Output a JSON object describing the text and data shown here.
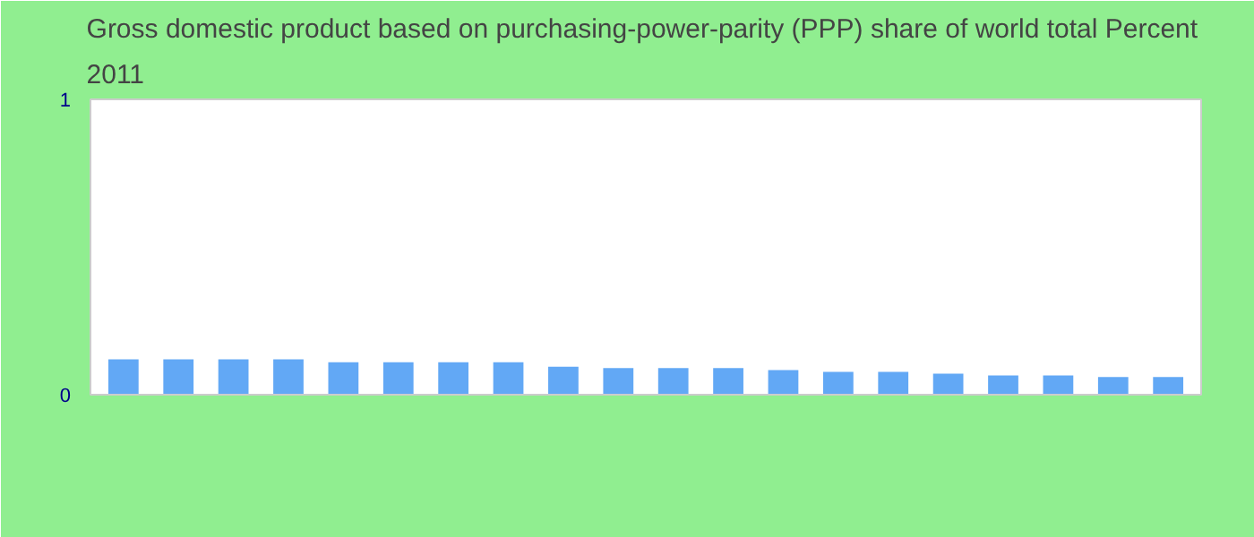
{
  "chart_data": {
    "type": "bar",
    "title": "Gross domestic product based on purchasing-power-parity (PPP) share of world total  Percent 2011",
    "categories": [
      null,
      null,
      null,
      null,
      null,
      null,
      null,
      null,
      null,
      null,
      null,
      null,
      null,
      null,
      null,
      null,
      null,
      null,
      null,
      null
    ],
    "values": [
      0.12,
      0.12,
      0.12,
      0.12,
      0.11,
      0.11,
      0.11,
      0.11,
      0.095,
      0.09,
      0.09,
      0.09,
      0.083,
      0.077,
      0.077,
      0.071,
      0.065,
      0.065,
      0.06,
      0.06
    ],
    "color": "#62a8f5",
    "ylim": [
      0,
      1
    ],
    "yticks": [
      0,
      1
    ],
    "grid": false
  }
}
